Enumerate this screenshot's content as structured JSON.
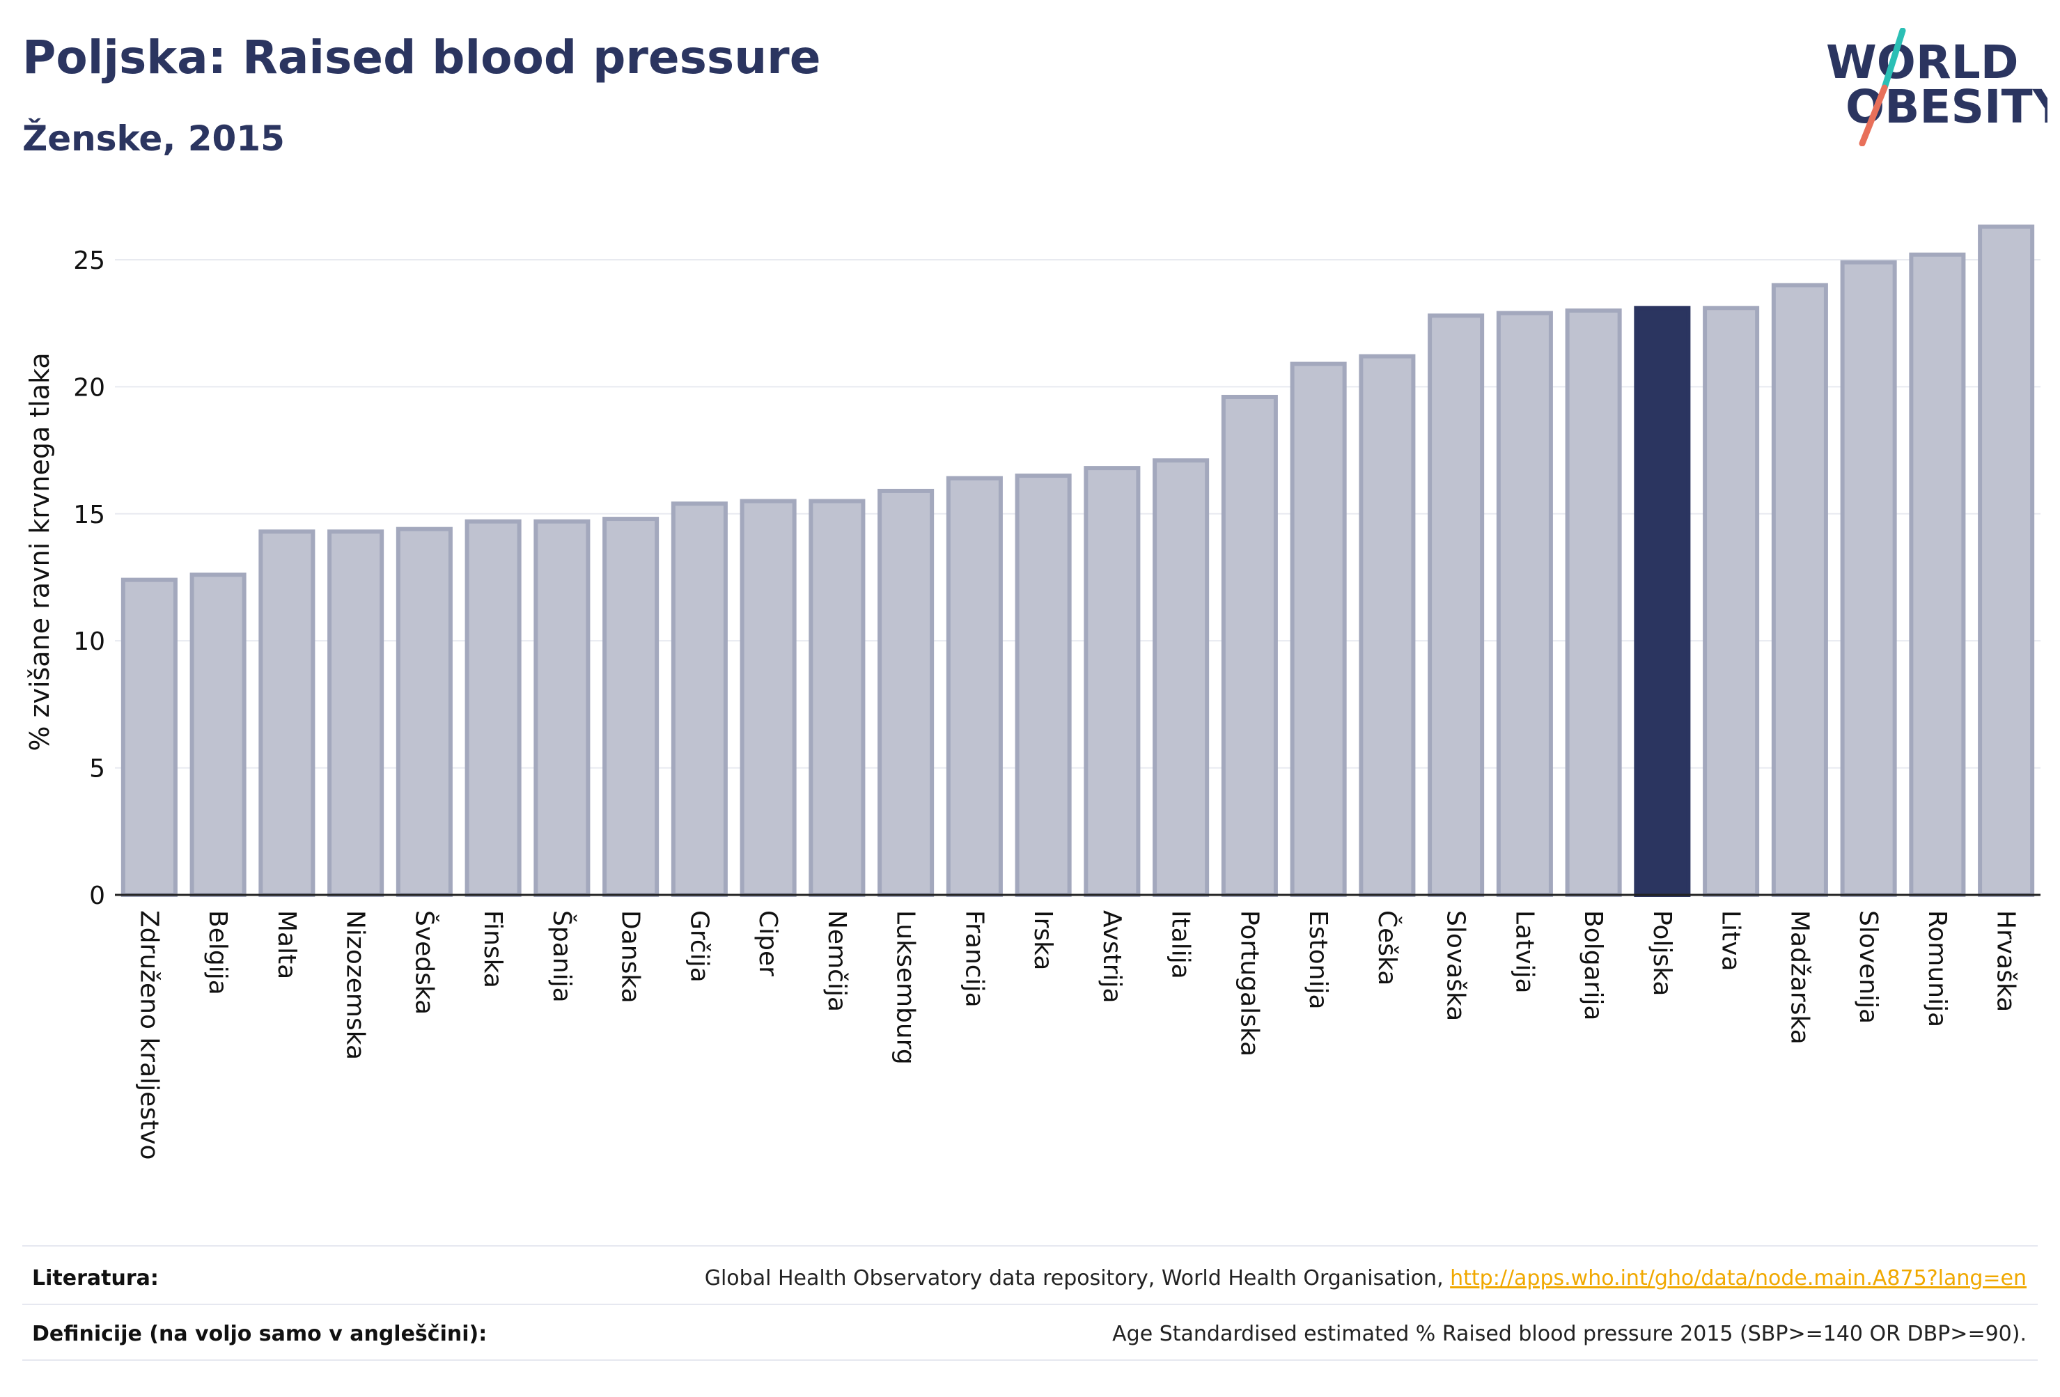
{
  "header": {
    "title": "Poljska: Raised blood pressure",
    "subtitle": "Ženske, 2015"
  },
  "logo": {
    "line1": "WORLD",
    "line2": "OBESITY",
    "colors": {
      "text": "#2b3560",
      "slash_top": "#2bbfb5",
      "slash_bottom": "#e8705a"
    }
  },
  "colors": {
    "bar_fill": "#bfc2d0",
    "bar_stroke": "#a3a8bd",
    "highlight_fill": "#2b3560",
    "grid": "#e8eaf0",
    "axis": "#222222"
  },
  "chart_data": {
    "type": "bar",
    "ylabel": "% zvišane ravni krvnega tlaka",
    "ylim": [
      0,
      27
    ],
    "yticks": [
      0,
      5,
      10,
      15,
      20,
      25
    ],
    "highlight": "Poljska",
    "categories": [
      "Združeno kraljestvo",
      "Belgija",
      "Malta",
      "Nizozemska",
      "Švedska",
      "Finska",
      "Španija",
      "Danska",
      "Grčija",
      "Ciper",
      "Nemčija",
      "Luksemburg",
      "Francija",
      "Irska",
      "Avstrija",
      "Italija",
      "Portugalska",
      "Estonija",
      "Češka",
      "Slovaška",
      "Latvija",
      "Bolgarija",
      "Poljska",
      "Litva",
      "Madžarska",
      "Slovenija",
      "Romunija",
      "Hrvaška"
    ],
    "values": [
      12.4,
      12.6,
      14.3,
      14.3,
      14.4,
      14.7,
      14.7,
      14.8,
      15.4,
      15.5,
      15.5,
      15.9,
      16.4,
      16.5,
      16.8,
      17.1,
      19.6,
      20.9,
      21.2,
      22.8,
      22.9,
      23.0,
      23.1,
      23.1,
      24.0,
      24.9,
      25.2,
      26.3
    ]
  },
  "sources": {
    "literature_label": "Literatura:",
    "literature_text": "Global Health Observatory data repository, World Health Organisation, ",
    "literature_link": "http://apps.who.int/gho/data/node.main.A875?lang=en",
    "definitions_label": "Definicije (na voljo samo v angleščini):",
    "definitions_text": "Age Standardised estimated % Raised blood pressure 2015 (SBP>=140 OR DBP>=90)."
  }
}
